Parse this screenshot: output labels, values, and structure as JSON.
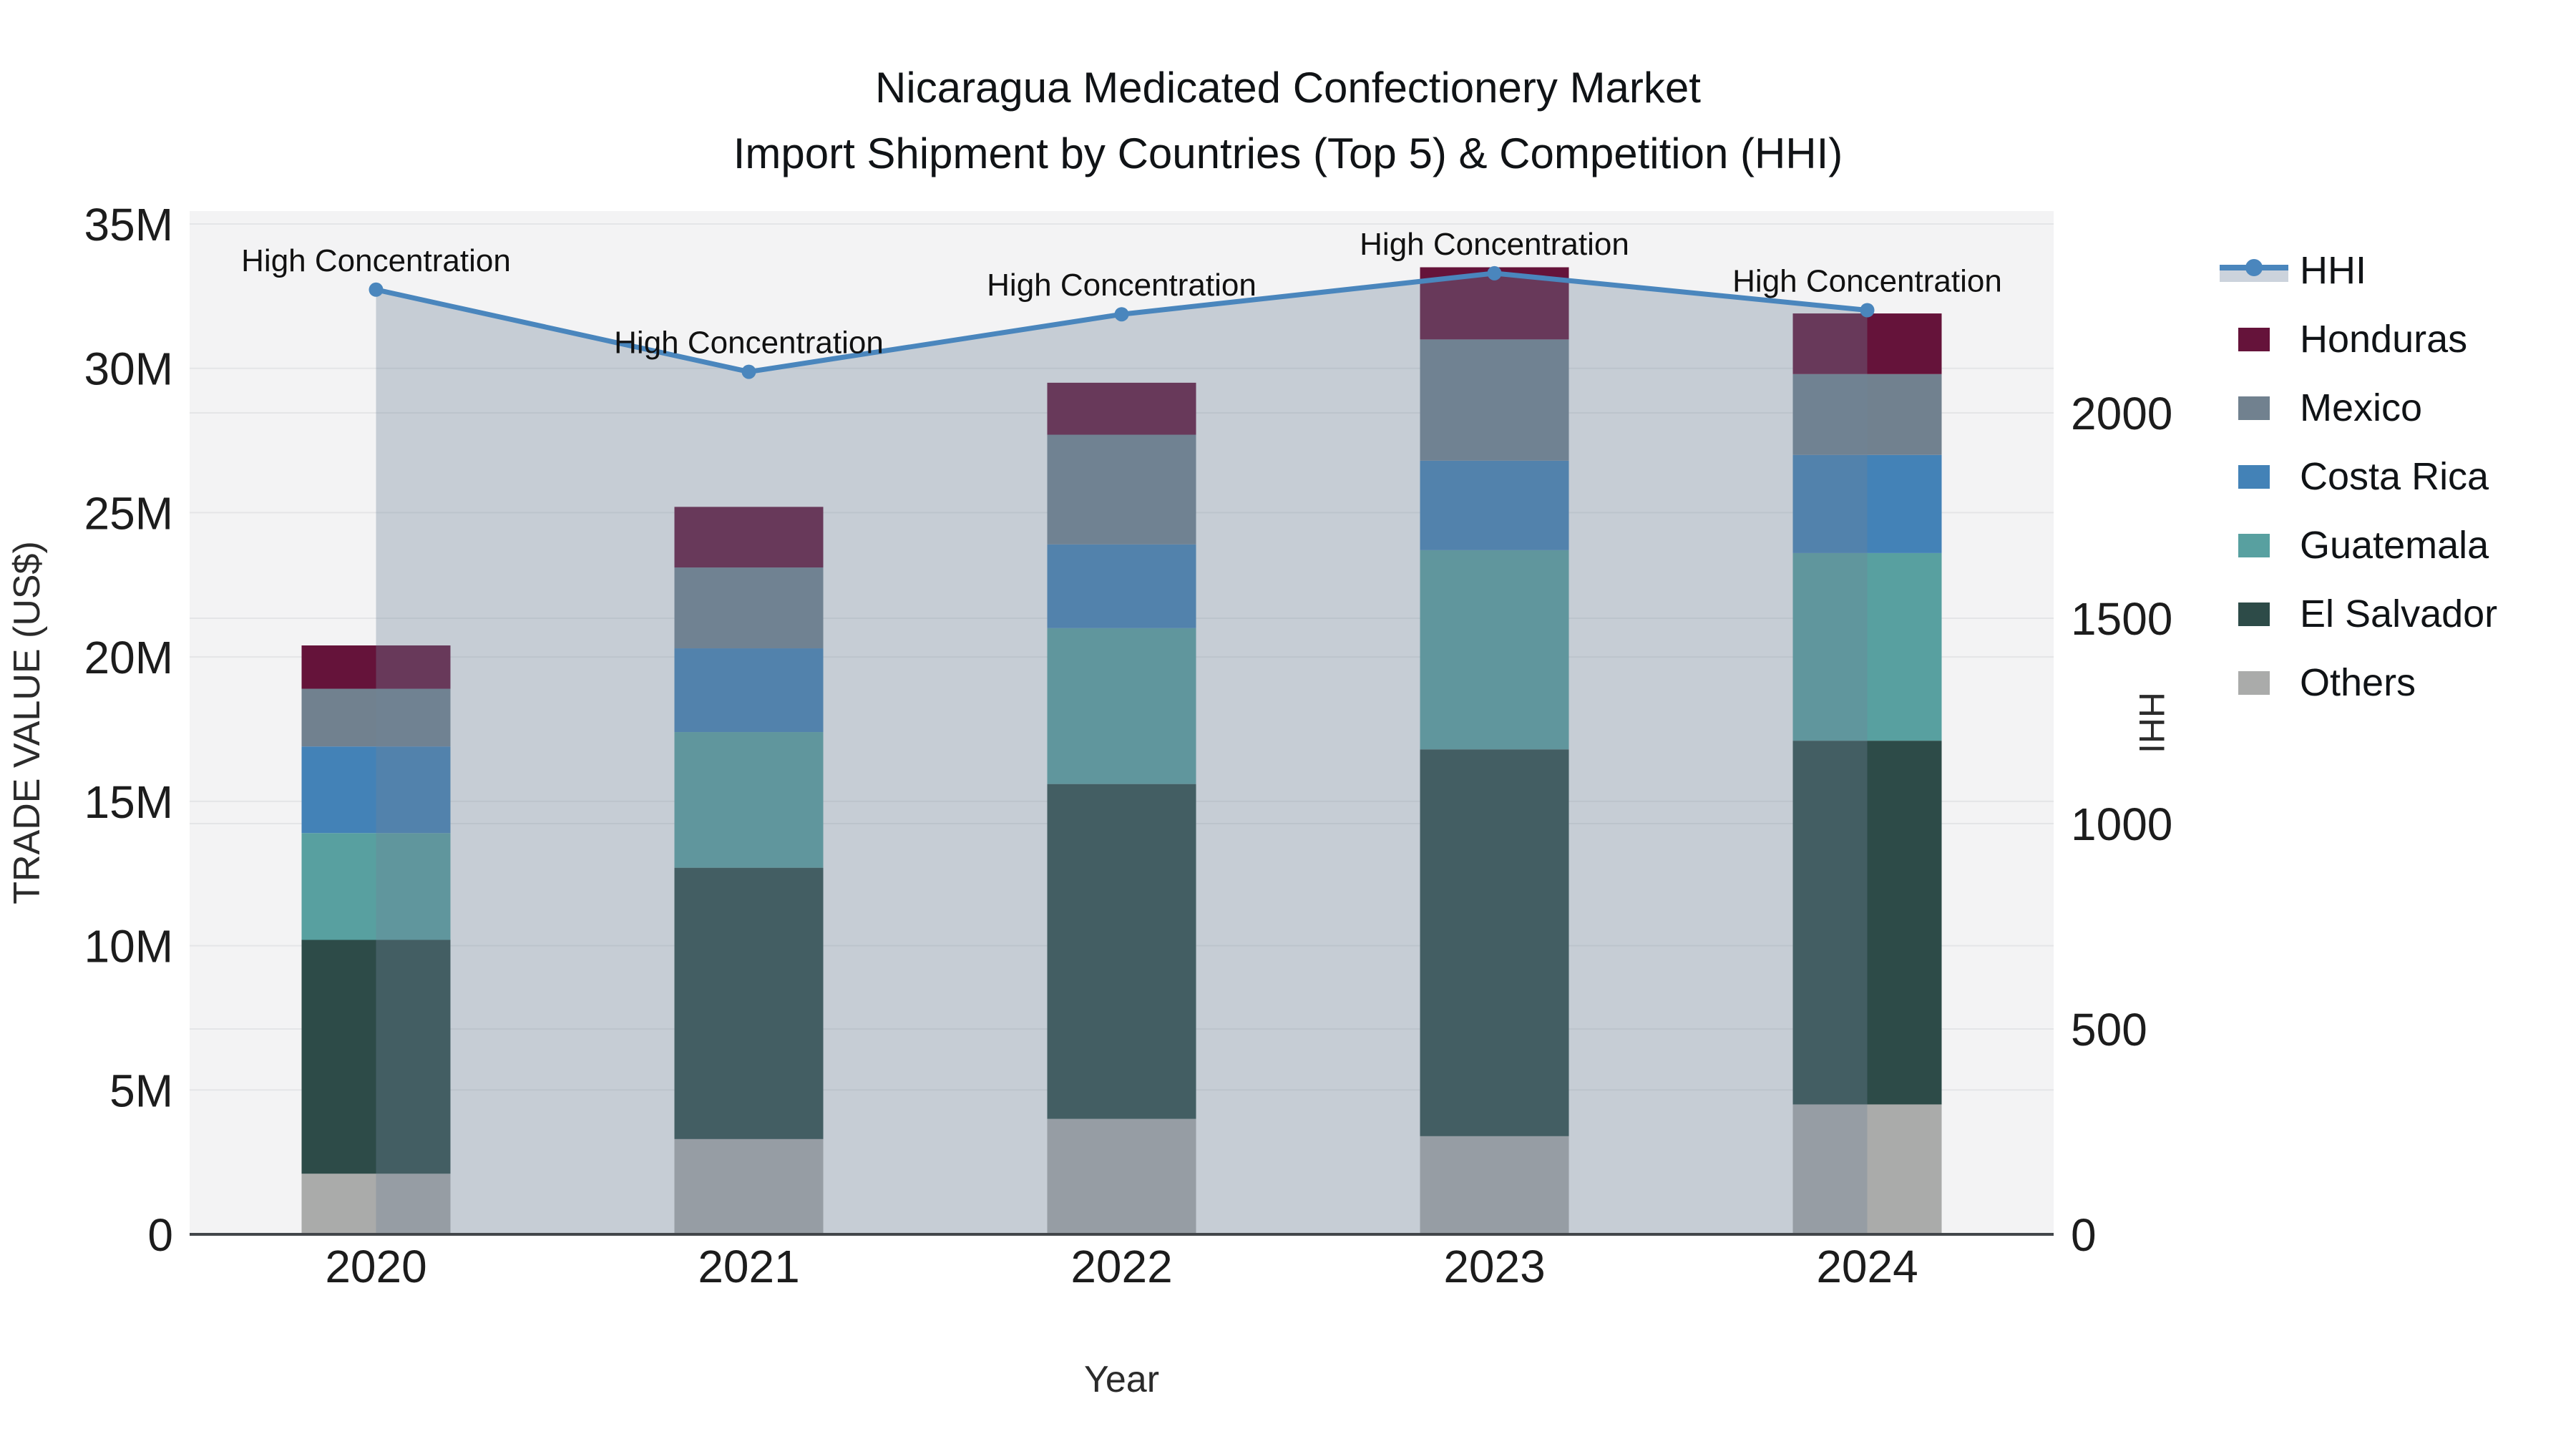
{
  "chart_data": {
    "type": "bar+line",
    "title": "Nicaragua Medicated Confectionery Market",
    "subtitle": "Import Shipment by Countries (Top 5) & Competition (HHI)",
    "categories": [
      "2020",
      "2021",
      "2022",
      "2023",
      "2024"
    ],
    "xlabel": "Year",
    "left_axis": {
      "label": "TRADE VALUE (US$)",
      "tick_values_millions": [
        0,
        5,
        10,
        15,
        20,
        25,
        30,
        35
      ],
      "tick_labels": [
        "0",
        "5M",
        "10M",
        "15M",
        "20M",
        "25M",
        "30M",
        "35M"
      ],
      "range_millions": [
        0,
        35.4
      ]
    },
    "right_axis": {
      "label": "HHI",
      "tick_values": [
        0,
        500,
        1000,
        1500,
        2000
      ],
      "tick_labels": [
        "0",
        "500",
        "1000",
        "1500",
        "2000"
      ],
      "range": [
        0,
        2490
      ]
    },
    "bar_series_bottom_to_top": [
      {
        "name": "Others",
        "color": "#aaabaa",
        "values_millions": [
          2.1,
          3.3,
          4.0,
          3.4,
          4.5
        ]
      },
      {
        "name": "El Salvador",
        "color": "#2d4b48",
        "values_millions": [
          8.1,
          9.4,
          11.6,
          13.4,
          12.6
        ]
      },
      {
        "name": "Guatemala",
        "color": "#58a0a0",
        "values_millions": [
          3.7,
          4.7,
          5.4,
          6.9,
          6.5
        ]
      },
      {
        "name": "Costa Rica",
        "color": "#4382b7",
        "values_millions": [
          3.0,
          2.9,
          2.9,
          3.1,
          3.4
        ]
      },
      {
        "name": "Mexico",
        "color": "#71818f",
        "values_millions": [
          2.0,
          2.8,
          3.8,
          4.2,
          2.8
        ]
      },
      {
        "name": "Honduras",
        "color": "#65133a",
        "values_millions": [
          1.5,
          2.1,
          1.8,
          2.5,
          2.1
        ]
      }
    ],
    "stack_totals_millions": [
      20.4,
      25.2,
      29.5,
      33.5,
      31.9
    ],
    "line_series": {
      "name": "HHI",
      "values": [
        2300,
        2100,
        2240,
        2340,
        2250
      ],
      "color": "#4a86bd",
      "area_fill": "rgba(110,132,152,0.34)",
      "marker_radius": 10,
      "line_width": 7
    },
    "annotations": [
      {
        "text": "High Concentration",
        "category": "2020"
      },
      {
        "text": "High Concentration",
        "category": "2021"
      },
      {
        "text": "High Concentration",
        "category": "2022"
      },
      {
        "text": "High Concentration",
        "category": "2023"
      },
      {
        "text": "High Concentration",
        "category": "2024"
      }
    ],
    "legend": [
      {
        "label": "HHI",
        "type": "line-area"
      },
      {
        "label": "Honduras",
        "type": "swatch",
        "color": "#65133a"
      },
      {
        "label": "Mexico",
        "type": "swatch",
        "color": "#71818f"
      },
      {
        "label": "Costa Rica",
        "type": "swatch",
        "color": "#4382b7"
      },
      {
        "label": "Guatemala",
        "type": "swatch",
        "color": "#58a0a0"
      },
      {
        "label": "El Salvador",
        "type": "swatch",
        "color": "#2d4b48"
      },
      {
        "label": "Others",
        "type": "swatch",
        "color": "#aaabaa"
      }
    ],
    "style": {
      "plot_bg": "#f3f3f4",
      "grid_color": "#e4e5e7",
      "axis_line_color": "#42464a",
      "tick_text_color": "#1c1c1c",
      "axis_title_color": "#2b2b2b",
      "annotation_color": "#111111",
      "legend_area_band": "#ccd3dc",
      "grid_on": true,
      "legend_position": "right"
    }
  }
}
